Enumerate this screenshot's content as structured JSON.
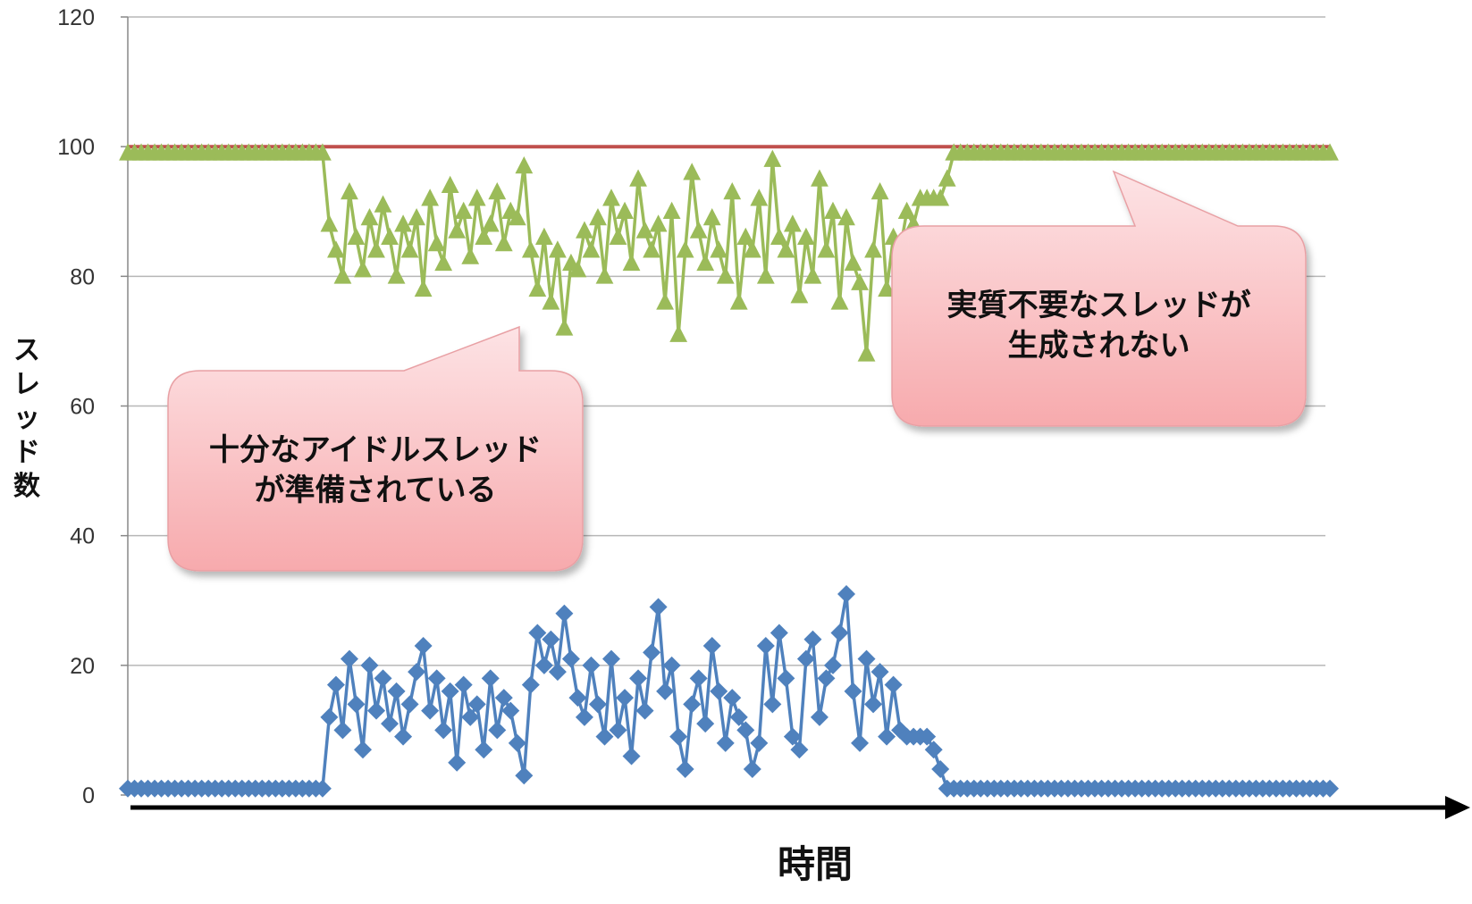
{
  "chart_data": {
    "type": "line",
    "title": "",
    "xlabel": "時間",
    "ylabel": "スレッド数",
    "ylim": [
      0,
      120
    ],
    "yticks": [
      "0",
      "20",
      "40",
      "60",
      "80",
      "100",
      "120"
    ],
    "grid": true,
    "legend": "none",
    "x": [
      1,
      2,
      3,
      4,
      5,
      6,
      7,
      8,
      9,
      10,
      11,
      12,
      13,
      14,
      15,
      16,
      17,
      18,
      19,
      20,
      21,
      22,
      23,
      24,
      25,
      26,
      27,
      28,
      29,
      30,
      31,
      32,
      33,
      34,
      35,
      36,
      37,
      38,
      39,
      40,
      41,
      42,
      43,
      44,
      45,
      46,
      47,
      48,
      49,
      50,
      51,
      52,
      53,
      54,
      55,
      56,
      57,
      58,
      59,
      60,
      61,
      62,
      63,
      64,
      65,
      66,
      67,
      68,
      69,
      70,
      71,
      72,
      73,
      74,
      75,
      76,
      77,
      78,
      79,
      80,
      81,
      82,
      83,
      84,
      85,
      86,
      87,
      88,
      89,
      90,
      91,
      92,
      93,
      94,
      95,
      96,
      97,
      98,
      99,
      100,
      101,
      102,
      103,
      104,
      105,
      106,
      107,
      108,
      109,
      110,
      111,
      112,
      113,
      114,
      115,
      116,
      117,
      118,
      119,
      120,
      121,
      122,
      123,
      124,
      125,
      126,
      127,
      128,
      129,
      130,
      131,
      132,
      133,
      134,
      135,
      136,
      137,
      138,
      139,
      140,
      141,
      142,
      143,
      144,
      145,
      146,
      147,
      148,
      149,
      150,
      151,
      152,
      153,
      154,
      155,
      156,
      157,
      158,
      159,
      160,
      161,
      162,
      163,
      164,
      165,
      166,
      167,
      168,
      169,
      170,
      171,
      172,
      173,
      174,
      175,
      176,
      177,
      178,
      179,
      180
    ],
    "series": [
      {
        "name": "",
        "color": "#c0504d",
        "marker": "none",
        "values": [
          100,
          100,
          100,
          100,
          100,
          100,
          100,
          100,
          100,
          100,
          100,
          100,
          100,
          100,
          100,
          100,
          100,
          100,
          100,
          100,
          100,
          100,
          100,
          100,
          100,
          100,
          100,
          100,
          100,
          100,
          100,
          100,
          100,
          100,
          100,
          100,
          100,
          100,
          100,
          100,
          100,
          100,
          100,
          100,
          100,
          100,
          100,
          100,
          100,
          100,
          100,
          100,
          100,
          100,
          100,
          100,
          100,
          100,
          100,
          100,
          100,
          100,
          100,
          100,
          100,
          100,
          100,
          100,
          100,
          100,
          100,
          100,
          100,
          100,
          100,
          100,
          100,
          100,
          100,
          100,
          100,
          100,
          100,
          100,
          100,
          100,
          100,
          100,
          100,
          100,
          100,
          100,
          100,
          100,
          100,
          100,
          100,
          100,
          100,
          100,
          100,
          100,
          100,
          100,
          100,
          100,
          100,
          100,
          100,
          100,
          100,
          100,
          100,
          100,
          100,
          100,
          100,
          100,
          100,
          100,
          100,
          100,
          100,
          100,
          100,
          100,
          100,
          100,
          100,
          100,
          100,
          100,
          100,
          100,
          100,
          100,
          100,
          100,
          100,
          100,
          100,
          100,
          100,
          100,
          100,
          100,
          100,
          100,
          100,
          100,
          100,
          100,
          100,
          100,
          100,
          100,
          100,
          100,
          100,
          100,
          100,
          100,
          100,
          100,
          100,
          100,
          100,
          100,
          100,
          100,
          100,
          100,
          100,
          100,
          100,
          100,
          100,
          100,
          100,
          100
        ]
      },
      {
        "name": "",
        "color": "#9bbb59",
        "marker": "triangle",
        "values": [
          99,
          99,
          99,
          99,
          99,
          99,
          99,
          99,
          99,
          99,
          99,
          99,
          99,
          99,
          99,
          99,
          99,
          99,
          99,
          99,
          99,
          99,
          99,
          99,
          99,
          99,
          99,
          99,
          99,
          99,
          88,
          84,
          80,
          93,
          86,
          81,
          89,
          84,
          91,
          86,
          80,
          88,
          84,
          89,
          78,
          92,
          85,
          82,
          94,
          87,
          90,
          83,
          92,
          86,
          88,
          93,
          85,
          90,
          89,
          97,
          84,
          78,
          86,
          76,
          84,
          72,
          82,
          81,
          87,
          84,
          89,
          80,
          92,
          86,
          90,
          82,
          95,
          87,
          84,
          88,
          76,
          90,
          71,
          84,
          96,
          87,
          82,
          89,
          84,
          80,
          93,
          76,
          86,
          84,
          92,
          80,
          98,
          86,
          84,
          88,
          77,
          86,
          80,
          95,
          84,
          90,
          76,
          89,
          82,
          79,
          68,
          84,
          93,
          78,
          86,
          84,
          90,
          88,
          92,
          92,
          92,
          92,
          95,
          99,
          99,
          99,
          99,
          99,
          99,
          99,
          99,
          99,
          99,
          99,
          99,
          99,
          99,
          99,
          99,
          99,
          99,
          99,
          99,
          99,
          99,
          99,
          99,
          99,
          99,
          99,
          99,
          99,
          99,
          99,
          99,
          99,
          99,
          99,
          99,
          99,
          99,
          99,
          99,
          99,
          99,
          99,
          99,
          99,
          99,
          99,
          99,
          99,
          99,
          99,
          99,
          99,
          99,
          99,
          99,
          99
        ]
      },
      {
        "name": "",
        "color": "#4f81bd",
        "marker": "diamond",
        "values": [
          1,
          1,
          1,
          1,
          1,
          1,
          1,
          1,
          1,
          1,
          1,
          1,
          1,
          1,
          1,
          1,
          1,
          1,
          1,
          1,
          1,
          1,
          1,
          1,
          1,
          1,
          1,
          1,
          1,
          1,
          12,
          17,
          10,
          21,
          14,
          7,
          20,
          13,
          18,
          11,
          16,
          9,
          14,
          19,
          23,
          13,
          18,
          10,
          16,
          5,
          17,
          12,
          14,
          7,
          18,
          10,
          15,
          13,
          8,
          3,
          17,
          25,
          20,
          24,
          19,
          28,
          21,
          15,
          12,
          20,
          14,
          9,
          21,
          10,
          15,
          6,
          18,
          13,
          22,
          29,
          16,
          20,
          9,
          4,
          14,
          18,
          11,
          23,
          16,
          8,
          15,
          12,
          10,
          4,
          8,
          23,
          14,
          25,
          18,
          9,
          7,
          21,
          24,
          12,
          18,
          20,
          25,
          31,
          16,
          8,
          21,
          14,
          19,
          9,
          17,
          10,
          9,
          9,
          9,
          9,
          7,
          4,
          1,
          1,
          1,
          1,
          1,
          1,
          1,
          1,
          1,
          1,
          1,
          1,
          1,
          1,
          1,
          1,
          1,
          1,
          1,
          1,
          1,
          1,
          1,
          1,
          1,
          1,
          1,
          1,
          1,
          1,
          1,
          1,
          1,
          1,
          1,
          1,
          1,
          1,
          1,
          1,
          1,
          1,
          1,
          1,
          1,
          1,
          1,
          1,
          1,
          1,
          1,
          1,
          1,
          1,
          1,
          1,
          1,
          1
        ]
      }
    ],
    "annotations": [
      {
        "lines": [
          "十分なアイドルスレッド",
          "が準備されている"
        ],
        "fill_top": "#fde3e5",
        "fill_bottom": "#f7aaad"
      },
      {
        "lines": [
          "実質不要なスレッドが",
          "生成されない"
        ],
        "fill_top": "#fde3e5",
        "fill_bottom": "#f7aaad"
      }
    ]
  }
}
